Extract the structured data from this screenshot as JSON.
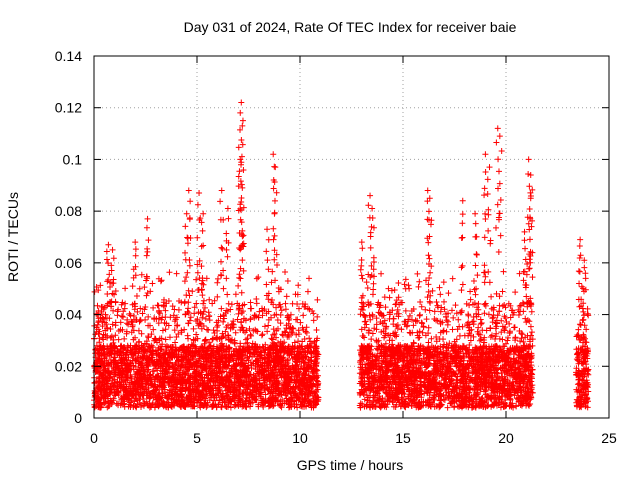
{
  "chart_data": {
    "type": "scatter",
    "title": "Day 031 of 2024, Rate Of TEC Index for receiver baie",
    "xlabel": "GPS time / hours",
    "ylabel": "ROTI / TECUs",
    "xlim": [
      0,
      25
    ],
    "ylim": [
      0,
      0.14
    ],
    "xticks": [
      0,
      5,
      10,
      15,
      20,
      25
    ],
    "yticks": [
      0,
      0.02,
      0.04,
      0.06,
      0.08,
      0.1,
      0.12,
      0.14
    ],
    "xtick_labels": [
      "0",
      "5",
      "10",
      "15",
      "20",
      "25"
    ],
    "ytick_labels": [
      "0",
      "0.02",
      "0.04",
      "0.06",
      "0.08",
      "0.1",
      "0.12",
      "0.14"
    ],
    "grid": true,
    "marker": "plus",
    "color": "#ff0000",
    "data_segments": [
      {
        "x_range": [
          0.0,
          10.9
        ],
        "typical_upper": 0.045
      },
      {
        "x_range": [
          12.9,
          21.3
        ],
        "typical_upper": 0.045
      },
      {
        "x_range": [
          23.4,
          24.0
        ],
        "typical_upper": 0.04
      }
    ],
    "peaks": [
      {
        "x": 0.7,
        "y": 0.067
      },
      {
        "x": 0.9,
        "y": 0.065
      },
      {
        "x": 2.0,
        "y": 0.068
      },
      {
        "x": 2.6,
        "y": 0.077
      },
      {
        "x": 4.6,
        "y": 0.088
      },
      {
        "x": 4.5,
        "y": 0.079
      },
      {
        "x": 5.1,
        "y": 0.087
      },
      {
        "x": 5.3,
        "y": 0.079
      },
      {
        "x": 6.2,
        "y": 0.088
      },
      {
        "x": 6.5,
        "y": 0.081
      },
      {
        "x": 7.1,
        "y": 0.118
      },
      {
        "x": 7.15,
        "y": 0.122
      },
      {
        "x": 7.2,
        "y": 0.113
      },
      {
        "x": 7.1,
        "y": 0.1
      },
      {
        "x": 7.2,
        "y": 0.089
      },
      {
        "x": 8.7,
        "y": 0.102
      },
      {
        "x": 8.8,
        "y": 0.097
      },
      {
        "x": 8.4,
        "y": 0.073
      },
      {
        "x": 13.4,
        "y": 0.086
      },
      {
        "x": 13.5,
        "y": 0.081
      },
      {
        "x": 13.0,
        "y": 0.068
      },
      {
        "x": 16.2,
        "y": 0.088
      },
      {
        "x": 16.3,
        "y": 0.085
      },
      {
        "x": 17.9,
        "y": 0.084
      },
      {
        "x": 18.5,
        "y": 0.079
      },
      {
        "x": 19.0,
        "y": 0.102
      },
      {
        "x": 19.2,
        "y": 0.097
      },
      {
        "x": 19.6,
        "y": 0.112
      },
      {
        "x": 19.7,
        "y": 0.109
      },
      {
        "x": 21.1,
        "y": 0.1
      },
      {
        "x": 21.2,
        "y": 0.094
      },
      {
        "x": 21.2,
        "y": 0.085
      },
      {
        "x": 20.9,
        "y": 0.072
      },
      {
        "x": 23.6,
        "y": 0.069
      },
      {
        "x": 23.8,
        "y": 0.061
      }
    ]
  }
}
